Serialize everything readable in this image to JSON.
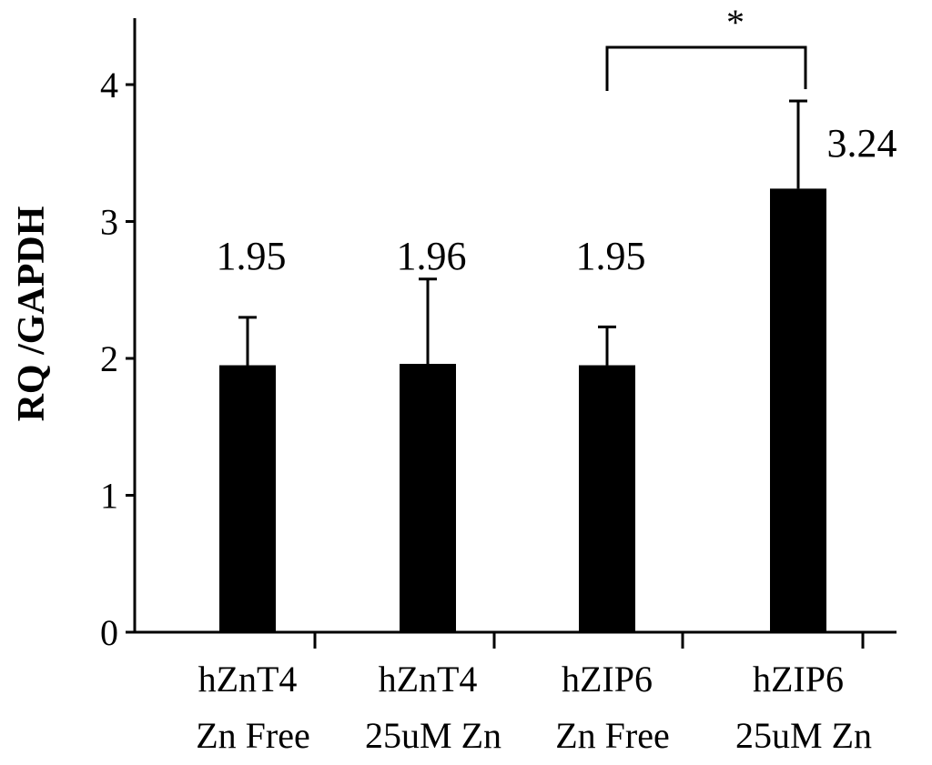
{
  "chart_data": {
    "type": "bar",
    "ylabel": "RQ /GAPDH",
    "xlabel": "",
    "title": "",
    "ylim": [
      0,
      4.5
    ],
    "yticks": [
      0,
      1,
      2,
      3,
      4
    ],
    "grid": false,
    "bar_color": "#000000",
    "categories": [
      {
        "line1": "hZnT4",
        "line2": "Zn Free"
      },
      {
        "line1": "hZnT4",
        "line2": "25uM Zn"
      },
      {
        "line1": "hZIP6",
        "line2": "Zn Free"
      },
      {
        "line1": "hZIP6",
        "line2": "25uM Zn"
      }
    ],
    "values": [
      1.95,
      1.96,
      1.95,
      3.24
    ],
    "error_upper": [
      2.3,
      2.58,
      2.23,
      3.88
    ],
    "data_labels": [
      "1.95",
      "1.96",
      "1.95",
      "3.24"
    ],
    "significance": {
      "from_index": 2,
      "to_index": 3,
      "symbol": "*"
    }
  }
}
